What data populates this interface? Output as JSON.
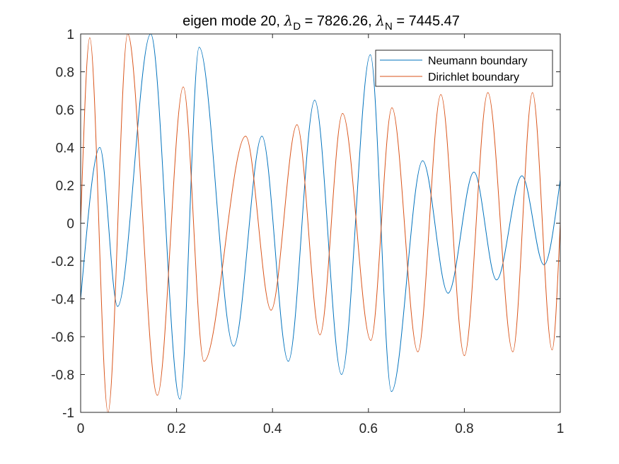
{
  "chart_data": {
    "type": "line",
    "title": {
      "prefix": "eigen mode 20, ",
      "lambda_symbol": "λ",
      "d_subscript": "D",
      "d_value": " = 7826.26, ",
      "n_subscript": "N",
      "n_value": " = 7445.47"
    },
    "xlabel": "",
    "ylabel": "",
    "xlim": [
      0,
      1
    ],
    "ylim": [
      -1,
      1
    ],
    "x_ticks": [
      0,
      0.2,
      0.4,
      0.6,
      0.8,
      1
    ],
    "x_tick_labels": [
      "0",
      "0.2",
      "0.4",
      "0.6",
      "0.8",
      "1"
    ],
    "y_ticks": [
      -1,
      -0.8,
      -0.6,
      -0.4,
      -0.2,
      0,
      0.2,
      0.4,
      0.6,
      0.8,
      1
    ],
    "y_tick_labels": [
      "-1",
      "-0.8",
      "-0.6",
      "-0.4",
      "-0.2",
      "0",
      "0.2",
      "0.4",
      "0.6",
      "0.8",
      "1"
    ],
    "grid": false,
    "legend_position": "top-right",
    "series": [
      {
        "name": "Neumann boundary",
        "color": "#0072BD",
        "x": [
          0,
          0.04,
          0.077,
          0.146,
          0.207,
          0.247,
          0.319,
          0.378,
          0.433,
          0.488,
          0.544,
          0.604,
          0.648,
          0.713,
          0.766,
          0.82,
          0.867,
          0.92,
          0.966,
          1.0
        ],
        "y": [
          -0.4,
          0.4,
          -0.44,
          1.0,
          -0.93,
          0.93,
          -0.65,
          0.46,
          -0.73,
          0.65,
          -0.8,
          0.89,
          -0.89,
          0.33,
          -0.37,
          0.27,
          -0.3,
          0.25,
          -0.22,
          0.23
        ]
      },
      {
        "name": "Dirichlet boundary",
        "color": "#D95319",
        "x": [
          0,
          0.019,
          0.057,
          0.098,
          0.16,
          0.214,
          0.257,
          0.344,
          0.397,
          0.451,
          0.499,
          0.546,
          0.605,
          0.649,
          0.703,
          0.751,
          0.8,
          0.849,
          0.901,
          0.942,
          0.983,
          1.0
        ],
        "y": [
          0,
          0.98,
          -1.0,
          1.0,
          -0.91,
          0.72,
          -0.73,
          0.46,
          -0.46,
          0.52,
          -0.59,
          0.58,
          -0.62,
          0.61,
          -0.68,
          0.68,
          -0.7,
          0.69,
          -0.68,
          0.69,
          -0.67,
          0
        ]
      }
    ]
  }
}
